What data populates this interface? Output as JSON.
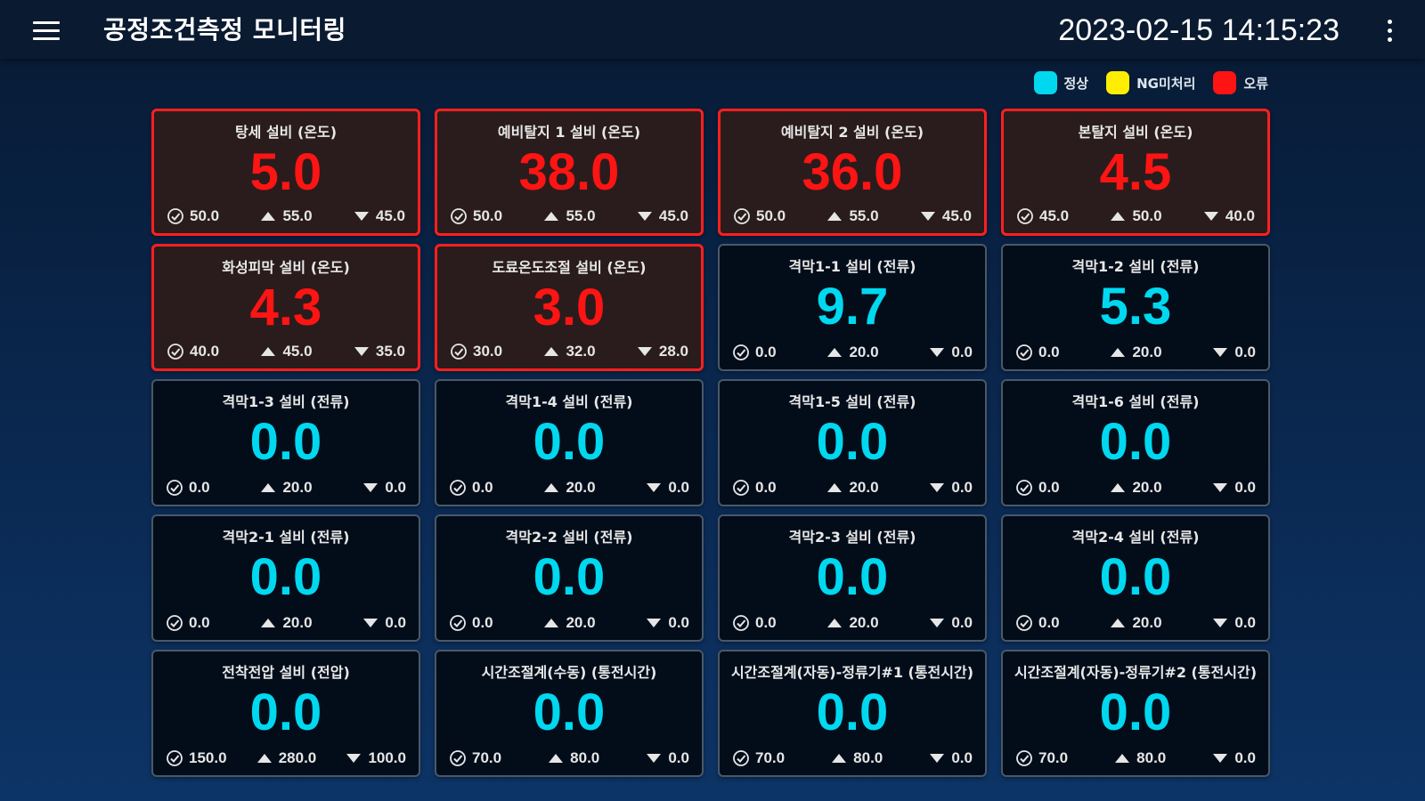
{
  "header": {
    "title": "공정조건측정 모니터링",
    "datetime": "2023-02-15 14:15:23",
    "menu_icon": "hamburger-menu-icon",
    "more_icon": "more-vert-icon"
  },
  "legend": [
    {
      "label": "정상",
      "color": "#00d8f0"
    },
    {
      "label": "NG미처리",
      "color": "#ffee00"
    },
    {
      "label": "오류",
      "color": "#ff1414"
    }
  ],
  "status_colors": {
    "normal": "#00d8f0",
    "error": "#ff1414",
    "ng": "#ffee00"
  },
  "cards": [
    {
      "title": "탕세 설비 (온도)",
      "value": "5.0",
      "target": "50.0",
      "upper": "55.0",
      "lower": "45.0",
      "status": "error"
    },
    {
      "title": "예비탈지 1 설비 (온도)",
      "value": "38.0",
      "target": "50.0",
      "upper": "55.0",
      "lower": "45.0",
      "status": "error"
    },
    {
      "title": "예비탈지 2 설비 (온도)",
      "value": "36.0",
      "target": "50.0",
      "upper": "55.0",
      "lower": "45.0",
      "status": "error"
    },
    {
      "title": "본탈지 설비 (온도)",
      "value": "4.5",
      "target": "45.0",
      "upper": "50.0",
      "lower": "40.0",
      "status": "error"
    },
    {
      "title": "화성피막 설비 (온도)",
      "value": "4.3",
      "target": "40.0",
      "upper": "45.0",
      "lower": "35.0",
      "status": "error"
    },
    {
      "title": "도료온도조절 설비 (온도)",
      "value": "3.0",
      "target": "30.0",
      "upper": "32.0",
      "lower": "28.0",
      "status": "error"
    },
    {
      "title": "격막1-1 설비 (전류)",
      "value": "9.7",
      "target": "0.0",
      "upper": "20.0",
      "lower": "0.0",
      "status": "normal"
    },
    {
      "title": "격막1-2 설비 (전류)",
      "value": "5.3",
      "target": "0.0",
      "upper": "20.0",
      "lower": "0.0",
      "status": "normal"
    },
    {
      "title": "격막1-3 설비 (전류)",
      "value": "0.0",
      "target": "0.0",
      "upper": "20.0",
      "lower": "0.0",
      "status": "normal"
    },
    {
      "title": "격막1-4 설비 (전류)",
      "value": "0.0",
      "target": "0.0",
      "upper": "20.0",
      "lower": "0.0",
      "status": "normal"
    },
    {
      "title": "격막1-5 설비 (전류)",
      "value": "0.0",
      "target": "0.0",
      "upper": "20.0",
      "lower": "0.0",
      "status": "normal"
    },
    {
      "title": "격막1-6 설비 (전류)",
      "value": "0.0",
      "target": "0.0",
      "upper": "20.0",
      "lower": "0.0",
      "status": "normal"
    },
    {
      "title": "격막2-1 설비 (전류)",
      "value": "0.0",
      "target": "0.0",
      "upper": "20.0",
      "lower": "0.0",
      "status": "normal"
    },
    {
      "title": "격막2-2 설비 (전류)",
      "value": "0.0",
      "target": "0.0",
      "upper": "20.0",
      "lower": "0.0",
      "status": "normal"
    },
    {
      "title": "격막2-3 설비 (전류)",
      "value": "0.0",
      "target": "0.0",
      "upper": "20.0",
      "lower": "0.0",
      "status": "normal"
    },
    {
      "title": "격막2-4 설비 (전류)",
      "value": "0.0",
      "target": "0.0",
      "upper": "20.0",
      "lower": "0.0",
      "status": "normal"
    },
    {
      "title": "전착전압 설비 (전압)",
      "value": "0.0",
      "target": "150.0",
      "upper": "280.0",
      "lower": "100.0",
      "status": "normal"
    },
    {
      "title": "시간조절계(수동) (통전시간)",
      "value": "0.0",
      "target": "70.0",
      "upper": "80.0",
      "lower": "0.0",
      "status": "normal"
    },
    {
      "title": "시간조절계(자동)-정류기#1 (통전시간)",
      "value": "0.0",
      "target": "70.0",
      "upper": "80.0",
      "lower": "0.0",
      "status": "normal"
    },
    {
      "title": "시간조절계(자동)-정류기#2 (통전시간)",
      "value": "0.0",
      "target": "70.0",
      "upper": "80.0",
      "lower": "0.0",
      "status": "normal"
    }
  ],
  "icons": {
    "target": "check-circle-icon",
    "upper": "triangle-up-icon",
    "lower": "triangle-down-icon"
  }
}
